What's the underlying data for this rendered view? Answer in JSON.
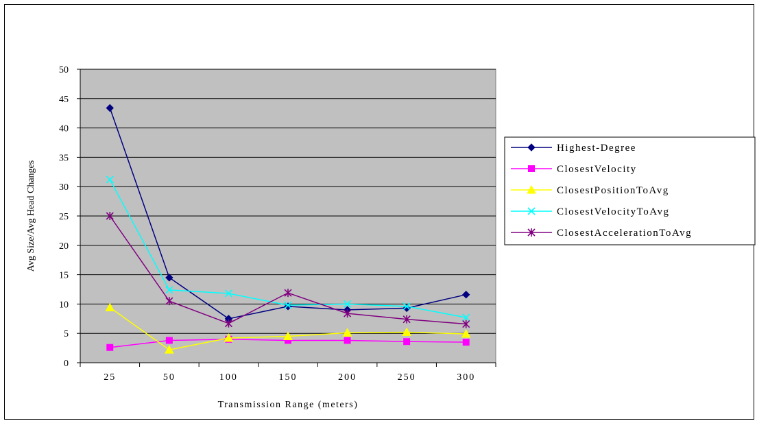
{
  "chart_data": {
    "type": "line",
    "title": "",
    "xlabel": "Transmission Range (meters)",
    "ylabel": "Avg Size/Avg Head Changes",
    "categories": [
      "25",
      "50",
      "100",
      "150",
      "200",
      "250",
      "300"
    ],
    "ylim": [
      0,
      50
    ],
    "yticks": [
      0,
      5,
      10,
      15,
      20,
      25,
      30,
      35,
      40,
      45,
      50
    ],
    "grid": true,
    "legend_position": "right",
    "plot_background": "#c0c0c0",
    "series": [
      {
        "name": "Highest-Degree",
        "color": "#000080",
        "marker": "diamond",
        "values": [
          43.4,
          14.5,
          7.5,
          9.6,
          9.0,
          9.3,
          11.6
        ]
      },
      {
        "name": "ClosestVelocity",
        "color": "#ff00ff",
        "marker": "square",
        "values": [
          2.6,
          3.8,
          4.0,
          3.8,
          3.8,
          3.6,
          3.5
        ]
      },
      {
        "name": "ClosestPositionToAvg",
        "color": "#ffff00",
        "marker": "triangle",
        "values": [
          9.4,
          2.2,
          4.2,
          4.5,
          5.1,
          5.2,
          4.9
        ]
      },
      {
        "name": "ClosestVelocityToAvg",
        "color": "#00ffff",
        "marker": "x",
        "values": [
          31.2,
          12.4,
          11.8,
          9.8,
          10.0,
          9.6,
          7.7
        ]
      },
      {
        "name": "ClosestAccelerationToAvg",
        "color": "#800080",
        "marker": "asterisk",
        "values": [
          25.0,
          10.5,
          6.7,
          11.9,
          8.4,
          7.4,
          6.6
        ]
      }
    ]
  }
}
